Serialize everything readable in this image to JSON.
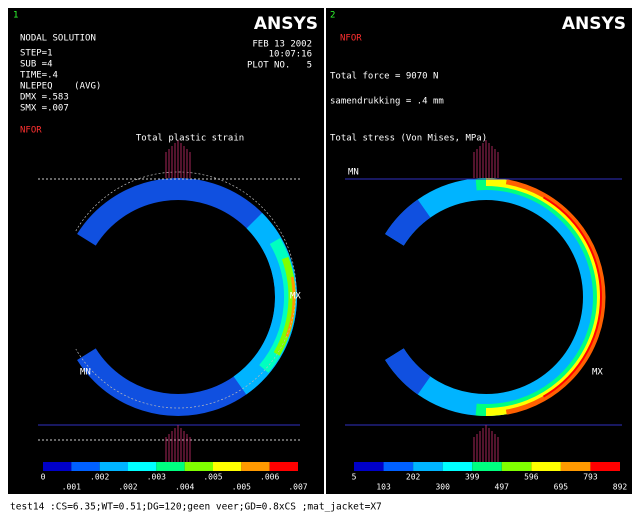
{
  "left_panel": {
    "number": "1",
    "header": [
      "NODAL SOLUTION",
      "STEP=1",
      "SUB =4",
      "TIME=.4",
      "NLEPEQ    (AVG)",
      "DMX =.583",
      "SMX =.007"
    ],
    "nfor": "NFOR",
    "logo": "ANSYS",
    "date": "FEB 13 2002",
    "time": "10:07:16",
    "plot": "PLOT NO.   5",
    "title": "Total plastic strain",
    "mx": "MX",
    "mn": "MN",
    "legend_top": [
      "0",
      ".002",
      ".003",
      ".005",
      ".006"
    ],
    "legend_bottom": [
      ".001",
      ".002",
      ".004",
      ".005",
      ".007"
    ]
  },
  "right_panel": {
    "number": "2",
    "nfor": "NFOR",
    "logo": "ANSYS",
    "force": "Total force = 9070 N",
    "compression": "samendrukking = .4 mm",
    "title": "Total stress (Von Mises, MPa)",
    "mn": "MN",
    "mx": "MX",
    "legend_top": [
      "5",
      "202",
      "399",
      "596",
      "793"
    ],
    "legend_bottom": [
      "103",
      "300",
      "497",
      "695",
      "892"
    ]
  },
  "caption": "test14 :CS=6.35;WT=0.51;DG=120;geen veer;GD=0.8xCS ;mat_jacket=X7"
}
